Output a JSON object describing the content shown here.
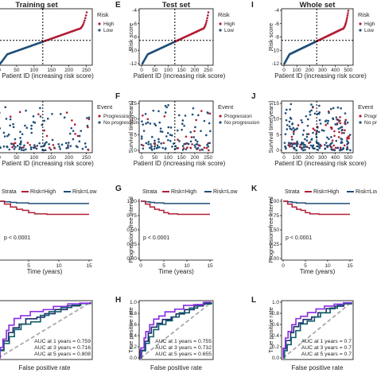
{
  "colors": {
    "high": "#b21f35",
    "low": "#1f4e79",
    "grid": "#000000",
    "gray": "#aaaaaa",
    "purple": "#8a2be2",
    "teal": "#0e5c67",
    "navy": "#1b2a6b"
  },
  "columns": [
    {
      "col": 0,
      "title": "Training set",
      "panel_letters": [
        "",
        "",
        "",
        ""
      ],
      "risk": {
        "n_ticks": [
          0,
          50,
          100,
          150,
          200,
          250
        ],
        "xmax": 260,
        "cutoff_x": 125,
        "cutoff_y": -8.5
      },
      "event": {
        "n_ticks": [
          0,
          50,
          100,
          150,
          200,
          250
        ]
      },
      "km": {
        "pvalue": "p < 0.0001",
        "x_ticks": [
          0,
          5,
          10,
          15
        ]
      },
      "roc": {
        "auc": [
          "AUC at 1 years = 0.759",
          "AUC at 3 years = 0.716",
          "AUC at 5 years = 0.808"
        ]
      }
    },
    {
      "col": 1,
      "title": "Test set",
      "panel_letters": [
        "E",
        "F",
        "G",
        "H"
      ],
      "risk": {
        "n_ticks": [
          0,
          50,
          100,
          150,
          200,
          250
        ],
        "xmax": 260,
        "cutoff_x": 125,
        "cutoff_y": -8.5
      },
      "event": {
        "n_ticks": [
          0,
          50,
          100,
          150,
          200,
          250
        ]
      },
      "km": {
        "pvalue": "p < 0.0001",
        "x_ticks": [
          0,
          5,
          10,
          15
        ]
      },
      "roc": {
        "auc": [
          "AUC at 1 years = 0.755",
          "AUC at 3 years = 0.732",
          "AUC at 5 years = 0.655"
        ]
      }
    },
    {
      "col": 2,
      "title": "Whole set",
      "panel_letters": [
        "I",
        "J",
        "K",
        "L"
      ],
      "risk": {
        "n_ticks": [
          0,
          100,
          200,
          300,
          400,
          500
        ],
        "xmax": 520,
        "cutoff_x": 255,
        "cutoff_y": -8.5
      },
      "event": {
        "n_ticks": [
          0,
          100,
          200,
          300,
          400,
          500
        ]
      },
      "km": {
        "pvalue": "p < 0.0001",
        "x_ticks": [
          0,
          5,
          10,
          15
        ]
      },
      "roc": {
        "auc": [
          "AUC at 1 years = 0.7",
          "AUC at 3 years = 0.7",
          "AUC at 5 years = 0.7"
        ]
      }
    }
  ],
  "labels": {
    "risk_ylabel": "Risk score",
    "risk_xlabel": "Patient ID (increasing risk score)",
    "risk_y_ticks": [
      -12,
      -10,
      -8,
      -6,
      -4
    ],
    "risk_legend_title": "Risk",
    "risk_legend": [
      "High",
      "Low"
    ],
    "event_ylabel": "Survival time(years)",
    "event_xlabel": "Patient ID (increasing risk score)",
    "event_y_ticks": [
      0,
      5,
      10,
      15
    ],
    "event_legend_title": "Event",
    "event_legend": [
      "Progression",
      "No progression"
    ],
    "km_ylabel": "Progression−free interval",
    "km_xlabel": "Time (years)",
    "km_y_ticks": [
      "0.00",
      "0.25",
      "0.50",
      "0.75",
      "1.00"
    ],
    "km_strata": "Strata",
    "km_legend": [
      "Risk=High",
      "Risk=Low"
    ],
    "roc_ylabel": "True positive rate",
    "roc_xlabel": "False positive rate",
    "roc_y_ticks": [
      "0.0",
      "0.2",
      "0.4",
      "0.6",
      "0.8",
      "1.0"
    ]
  },
  "chart_data": [
    {
      "type": "scatter",
      "panel": "risk-score-curve",
      "ylabel": "Risk score",
      "xlabel": "Patient ID (increasing risk score)",
      "legend": [
        "High",
        "Low"
      ],
      "ylim": [
        -12,
        -4
      ],
      "series_shape": "sorted ascending risk score, low then high at cutoff",
      "sampled_y": [
        -12,
        -11,
        -10.5,
        -10.0,
        -9.6,
        -9.2,
        -8.9,
        -8.6,
        -8.3,
        -8.0,
        -7.7,
        -7.4,
        -7.1,
        -6.6,
        -5.8,
        -4.5
      ]
    },
    {
      "type": "scatter",
      "panel": "survival-status",
      "ylabel": "Survival time(years)",
      "xlabel": "Patient ID (increasing risk score)",
      "legend": [
        "Progression",
        "No progression"
      ],
      "ylim": [
        0,
        15
      ]
    },
    {
      "type": "line",
      "panel": "kaplan-meier",
      "ylabel": "Progression−free interval",
      "xlabel": "Time (years)",
      "series": [
        {
          "name": "Risk=High",
          "x": [
            0,
            1,
            2,
            3,
            4,
            5,
            6,
            8,
            12,
            15
          ],
          "y": [
            1.0,
            0.95,
            0.9,
            0.86,
            0.84,
            0.8,
            0.78,
            0.77,
            0.77,
            0.77
          ]
        },
        {
          "name": "Risk=Low",
          "x": [
            0,
            1,
            2,
            3,
            5,
            8,
            12,
            15
          ],
          "y": [
            1.0,
            0.99,
            0.98,
            0.97,
            0.96,
            0.96,
            0.96,
            0.96
          ]
        }
      ],
      "xlim": [
        0,
        15
      ],
      "ylim": [
        0,
        1
      ]
    },
    {
      "type": "line",
      "panel": "roc",
      "ylabel": "True positive rate",
      "xlabel": "False positive rate",
      "xlim": [
        0,
        1
      ],
      "ylim": [
        0,
        1
      ]
    }
  ]
}
